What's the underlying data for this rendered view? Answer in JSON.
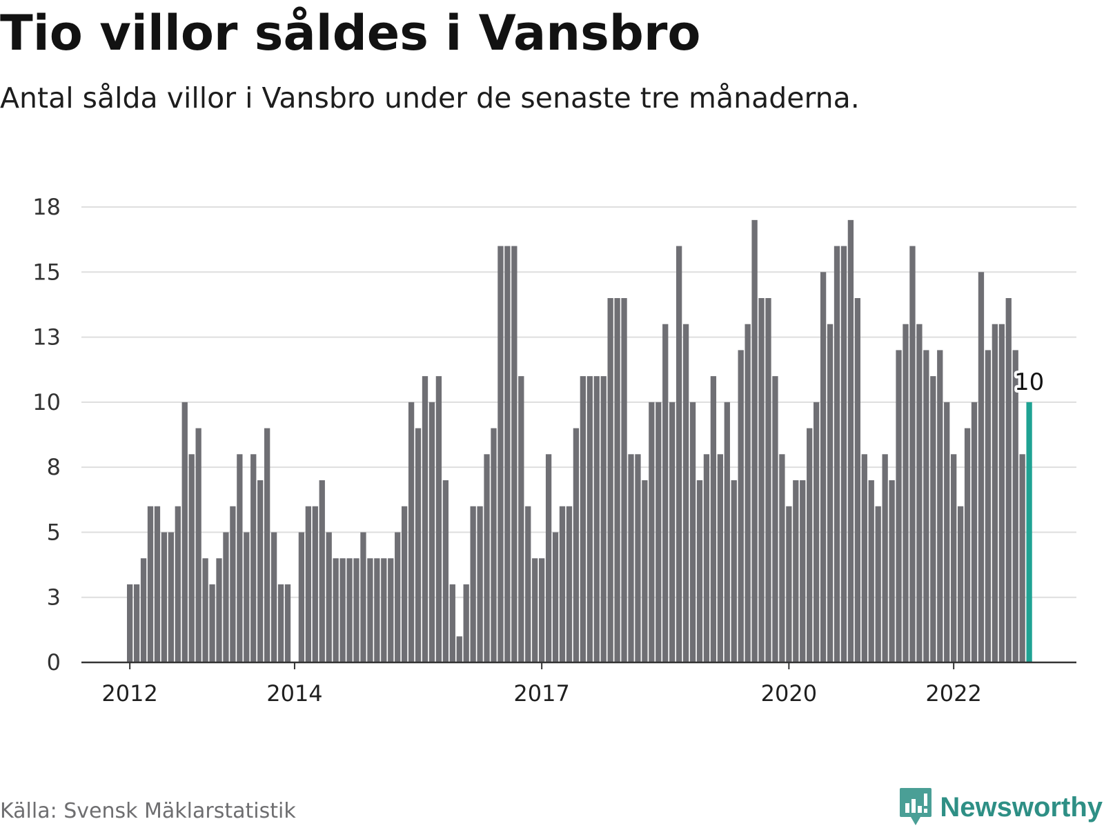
{
  "header": {
    "title": "Tio villor såldes i Vansbro",
    "subtitle": "Antal sålda villor i Vansbro under de senaste tre månaderna."
  },
  "footer": {
    "source": "Källa: Svensk Mäklarstatistik",
    "brand": "Newsworthy"
  },
  "colors": {
    "bar": "#6f6f74",
    "highlight": "#1fa293",
    "grid": "#dedede",
    "axis": "#333333",
    "brand": "#2e8f85"
  },
  "chart_data": {
    "type": "bar",
    "title": "Tio villor såldes i Vansbro",
    "subtitle": "Antal sålda villor i Vansbro under de senaste tre månaderna.",
    "xlabel": "",
    "ylabel": "",
    "ylim": [
      0,
      17.5
    ],
    "yticks": [
      0,
      2.5,
      5,
      7.5,
      10,
      12.5,
      15,
      17.5
    ],
    "ytick_labels": [
      "0",
      "3",
      "5",
      "8",
      "10",
      "13",
      "15",
      "18"
    ],
    "xtick_labels": [
      {
        "label": "2012",
        "index": 0
      },
      {
        "label": "2014",
        "index": 24
      },
      {
        "label": "2017",
        "index": 60
      },
      {
        "label": "2020",
        "index": 96
      },
      {
        "label": "2022",
        "index": 120
      }
    ],
    "grid": true,
    "start": "2012-01",
    "frequency": "monthly",
    "highlight_index": 131,
    "highlight_label": "10",
    "values": [
      3,
      3,
      4,
      6,
      6,
      5,
      5,
      6,
      10,
      8,
      9,
      4,
      3,
      4,
      5,
      6,
      8,
      5,
      8,
      7,
      9,
      5,
      3,
      3,
      null,
      5,
      6,
      6,
      7,
      5,
      4,
      4,
      4,
      4,
      5,
      4,
      4,
      4,
      4,
      5,
      6,
      10,
      9,
      11,
      10,
      11,
      7,
      3,
      1,
      3,
      6,
      6,
      8,
      9,
      16,
      16,
      16,
      11,
      6,
      4,
      4,
      8,
      5,
      6,
      6,
      9,
      11,
      11,
      11,
      11,
      14,
      14,
      14,
      8,
      8,
      7,
      10,
      10,
      13,
      10,
      16,
      13,
      10,
      7,
      8,
      11,
      8,
      10,
      7,
      12,
      13,
      17,
      14,
      14,
      11,
      8,
      6,
      7,
      7,
      9,
      10,
      15,
      13,
      16,
      16,
      17,
      14,
      8,
      7,
      6,
      8,
      7,
      12,
      13,
      16,
      13,
      12,
      11,
      12,
      10,
      8,
      6,
      9,
      10,
      15,
      12,
      13,
      13,
      14,
      12,
      8,
      10
    ]
  }
}
